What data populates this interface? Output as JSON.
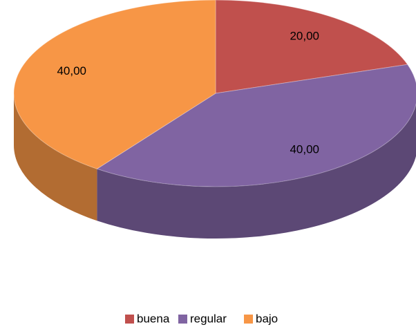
{
  "chart_data": {
    "type": "pie",
    "categories": [
      "buena",
      "regular",
      "bajo"
    ],
    "values": [
      20,
      40,
      40
    ],
    "value_labels": [
      "20,00",
      "40,00",
      "40,00"
    ],
    "colors": [
      "#c0504d",
      "#8064a2",
      "#f79646"
    ],
    "legend": "bottom"
  }
}
